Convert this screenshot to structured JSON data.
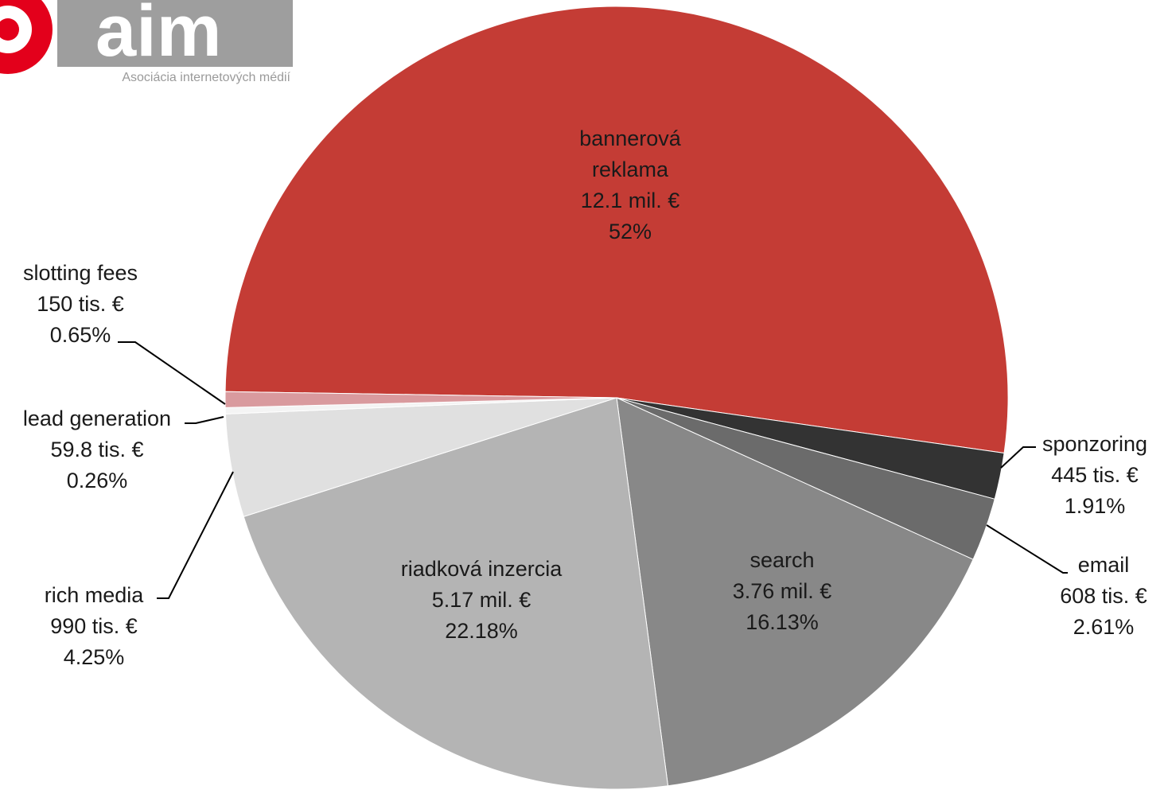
{
  "logo": {
    "name": "aim",
    "tagline": "Asociácia internetových médií",
    "red": "#e3001b",
    "gray": "#9e9e9e"
  },
  "chart_data": {
    "type": "pie",
    "title": "",
    "start": "bannerová reklama begins near 9 o'clock, clockwise",
    "slices": [
      {
        "key": "banner",
        "name": "bannerová reklama",
        "lines": [
          "bannerová",
          "reklama"
        ],
        "amount": "12.1 mil. €",
        "pct_label": "52%",
        "value": 52.0,
        "color": "#c43c35"
      },
      {
        "key": "sponz",
        "name": "sponzoring",
        "lines": [
          "sponzoring"
        ],
        "amount": "445 tis. €",
        "pct_label": "1.91%",
        "value": 1.91,
        "color": "#333333"
      },
      {
        "key": "email",
        "name": "email",
        "lines": [
          "email"
        ],
        "amount": "608 tis. €",
        "pct_label": "2.61%",
        "value": 2.61,
        "color": "#6b6b6b"
      },
      {
        "key": "search",
        "name": "search",
        "lines": [
          "search"
        ],
        "amount": "3.76 mil. €",
        "pct_label": "16.13%",
        "value": 16.13,
        "color": "#888888"
      },
      {
        "key": "riadkova",
        "name": "riadková inzercia",
        "lines": [
          "riadková inzercia"
        ],
        "amount": "5.17 mil. €",
        "pct_label": "22.18%",
        "value": 22.18,
        "color": "#b4b4b4"
      },
      {
        "key": "rich",
        "name": "rich media",
        "lines": [
          "rich media"
        ],
        "amount": "990 tis. €",
        "pct_label": "4.25%",
        "value": 4.25,
        "color": "#e0e0e0"
      },
      {
        "key": "lead",
        "name": "lead generation",
        "lines": [
          "lead generation"
        ],
        "amount": "59.8 tis. €",
        "pct_label": "0.26%",
        "value": 0.26,
        "color": "#f4f4f4"
      },
      {
        "key": "slot",
        "name": "slotting fees",
        "lines": [
          "slotting fees"
        ],
        "amount": "150 tis. €",
        "pct_label": "0.65%",
        "value": 0.65,
        "color": "#d99a9e"
      }
    ]
  }
}
